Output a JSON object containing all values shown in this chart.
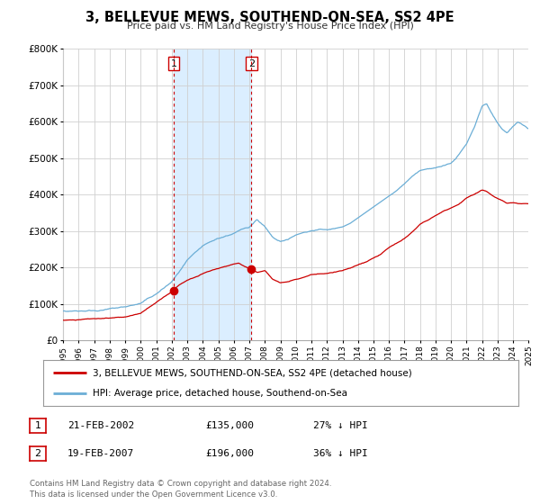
{
  "title": "3, BELLEVUE MEWS, SOUTHEND-ON-SEA, SS2 4PE",
  "subtitle": "Price paid vs. HM Land Registry's House Price Index (HPI)",
  "xlim": [
    1995,
    2025
  ],
  "ylim": [
    0,
    800000
  ],
  "yticks": [
    0,
    100000,
    200000,
    300000,
    400000,
    500000,
    600000,
    700000,
    800000
  ],
  "ytick_labels": [
    "£0",
    "£100K",
    "£200K",
    "£300K",
    "£400K",
    "£500K",
    "£600K",
    "£700K",
    "£800K"
  ],
  "xticks": [
    1995,
    1996,
    1997,
    1998,
    1999,
    2000,
    2001,
    2002,
    2003,
    2004,
    2005,
    2006,
    2007,
    2008,
    2009,
    2010,
    2011,
    2012,
    2013,
    2014,
    2015,
    2016,
    2017,
    2018,
    2019,
    2020,
    2021,
    2022,
    2023,
    2024,
    2025
  ],
  "hpi_color": "#6baed6",
  "price_color": "#cc0000",
  "transaction_color": "#cc0000",
  "vline_color": "#cc0000",
  "shade_color": "#dbeeff",
  "legend1_label": "3, BELLEVUE MEWS, SOUTHEND-ON-SEA, SS2 4PE (detached house)",
  "legend2_label": "HPI: Average price, detached house, Southend-on-Sea",
  "transaction1_x": 2002.13,
  "transaction1_y": 135000,
  "transaction2_x": 2007.13,
  "transaction2_y": 196000,
  "table_rows": [
    {
      "num": "1",
      "date": "21-FEB-2002",
      "price": "£135,000",
      "hpi": "27% ↓ HPI"
    },
    {
      "num": "2",
      "date": "19-FEB-2007",
      "price": "£196,000",
      "hpi": "36% ↓ HPI"
    }
  ],
  "footer": "Contains HM Land Registry data © Crown copyright and database right 2024.\nThis data is licensed under the Open Government Licence v3.0.",
  "background_color": "#ffffff",
  "grid_color": "#d0d0d0",
  "hpi_anchors_x": [
    1995,
    1996,
    1997,
    1998,
    1999,
    2000,
    2001,
    2002,
    2003,
    2004,
    2005,
    2006,
    2007,
    2007.5,
    2008,
    2008.5,
    2009,
    2009.5,
    2010,
    2010.5,
    2011,
    2011.5,
    2012,
    2012.5,
    2013,
    2013.5,
    2014,
    2014.5,
    2015,
    2015.5,
    2016,
    2016.5,
    2017,
    2017.5,
    2018,
    2018.5,
    2019,
    2019.5,
    2020,
    2020.5,
    2021,
    2021.5,
    2022,
    2022.3,
    2022.6,
    2023,
    2023.3,
    2023.6,
    2024,
    2024.3,
    2025
  ],
  "hpi_anchors_y": [
    80000,
    82000,
    85000,
    90000,
    95000,
    105000,
    130000,
    163000,
    220000,
    255000,
    275000,
    290000,
    308000,
    330000,
    310000,
    278000,
    265000,
    272000,
    283000,
    290000,
    296000,
    300000,
    298000,
    302000,
    305000,
    315000,
    330000,
    345000,
    360000,
    375000,
    390000,
    405000,
    425000,
    445000,
    460000,
    465000,
    468000,
    475000,
    480000,
    505000,
    535000,
    580000,
    640000,
    645000,
    620000,
    595000,
    580000,
    570000,
    590000,
    600000,
    580000
  ],
  "price_anchors_x": [
    1995,
    1996,
    1997,
    1998,
    1999,
    2000,
    2001,
    2002,
    2002.5,
    2003,
    2003.5,
    2004,
    2004.5,
    2005,
    2005.5,
    2006,
    2006.3,
    2007,
    2007.5,
    2008,
    2008.5,
    2009,
    2009.5,
    2010,
    2010.5,
    2011,
    2011.5,
    2012,
    2012.5,
    2013,
    2013.5,
    2014,
    2014.5,
    2015,
    2015.5,
    2016,
    2016.5,
    2017,
    2017.5,
    2018,
    2018.5,
    2019,
    2019.5,
    2020,
    2020.5,
    2021,
    2021.5,
    2022,
    2022.3,
    2022.6,
    2023,
    2023.3,
    2023.6,
    2024,
    2024.3,
    2025
  ],
  "price_anchors_y": [
    55000,
    57000,
    60000,
    62000,
    65000,
    75000,
    105000,
    135000,
    155000,
    168000,
    175000,
    183000,
    190000,
    196000,
    202000,
    208000,
    212000,
    196000,
    188000,
    195000,
    170000,
    160000,
    163000,
    170000,
    175000,
    182000,
    183000,
    185000,
    188000,
    193000,
    198000,
    208000,
    215000,
    228000,
    238000,
    255000,
    268000,
    282000,
    298000,
    318000,
    330000,
    342000,
    355000,
    365000,
    375000,
    390000,
    400000,
    410000,
    405000,
    395000,
    385000,
    380000,
    372000,
    375000,
    373000,
    375000
  ]
}
